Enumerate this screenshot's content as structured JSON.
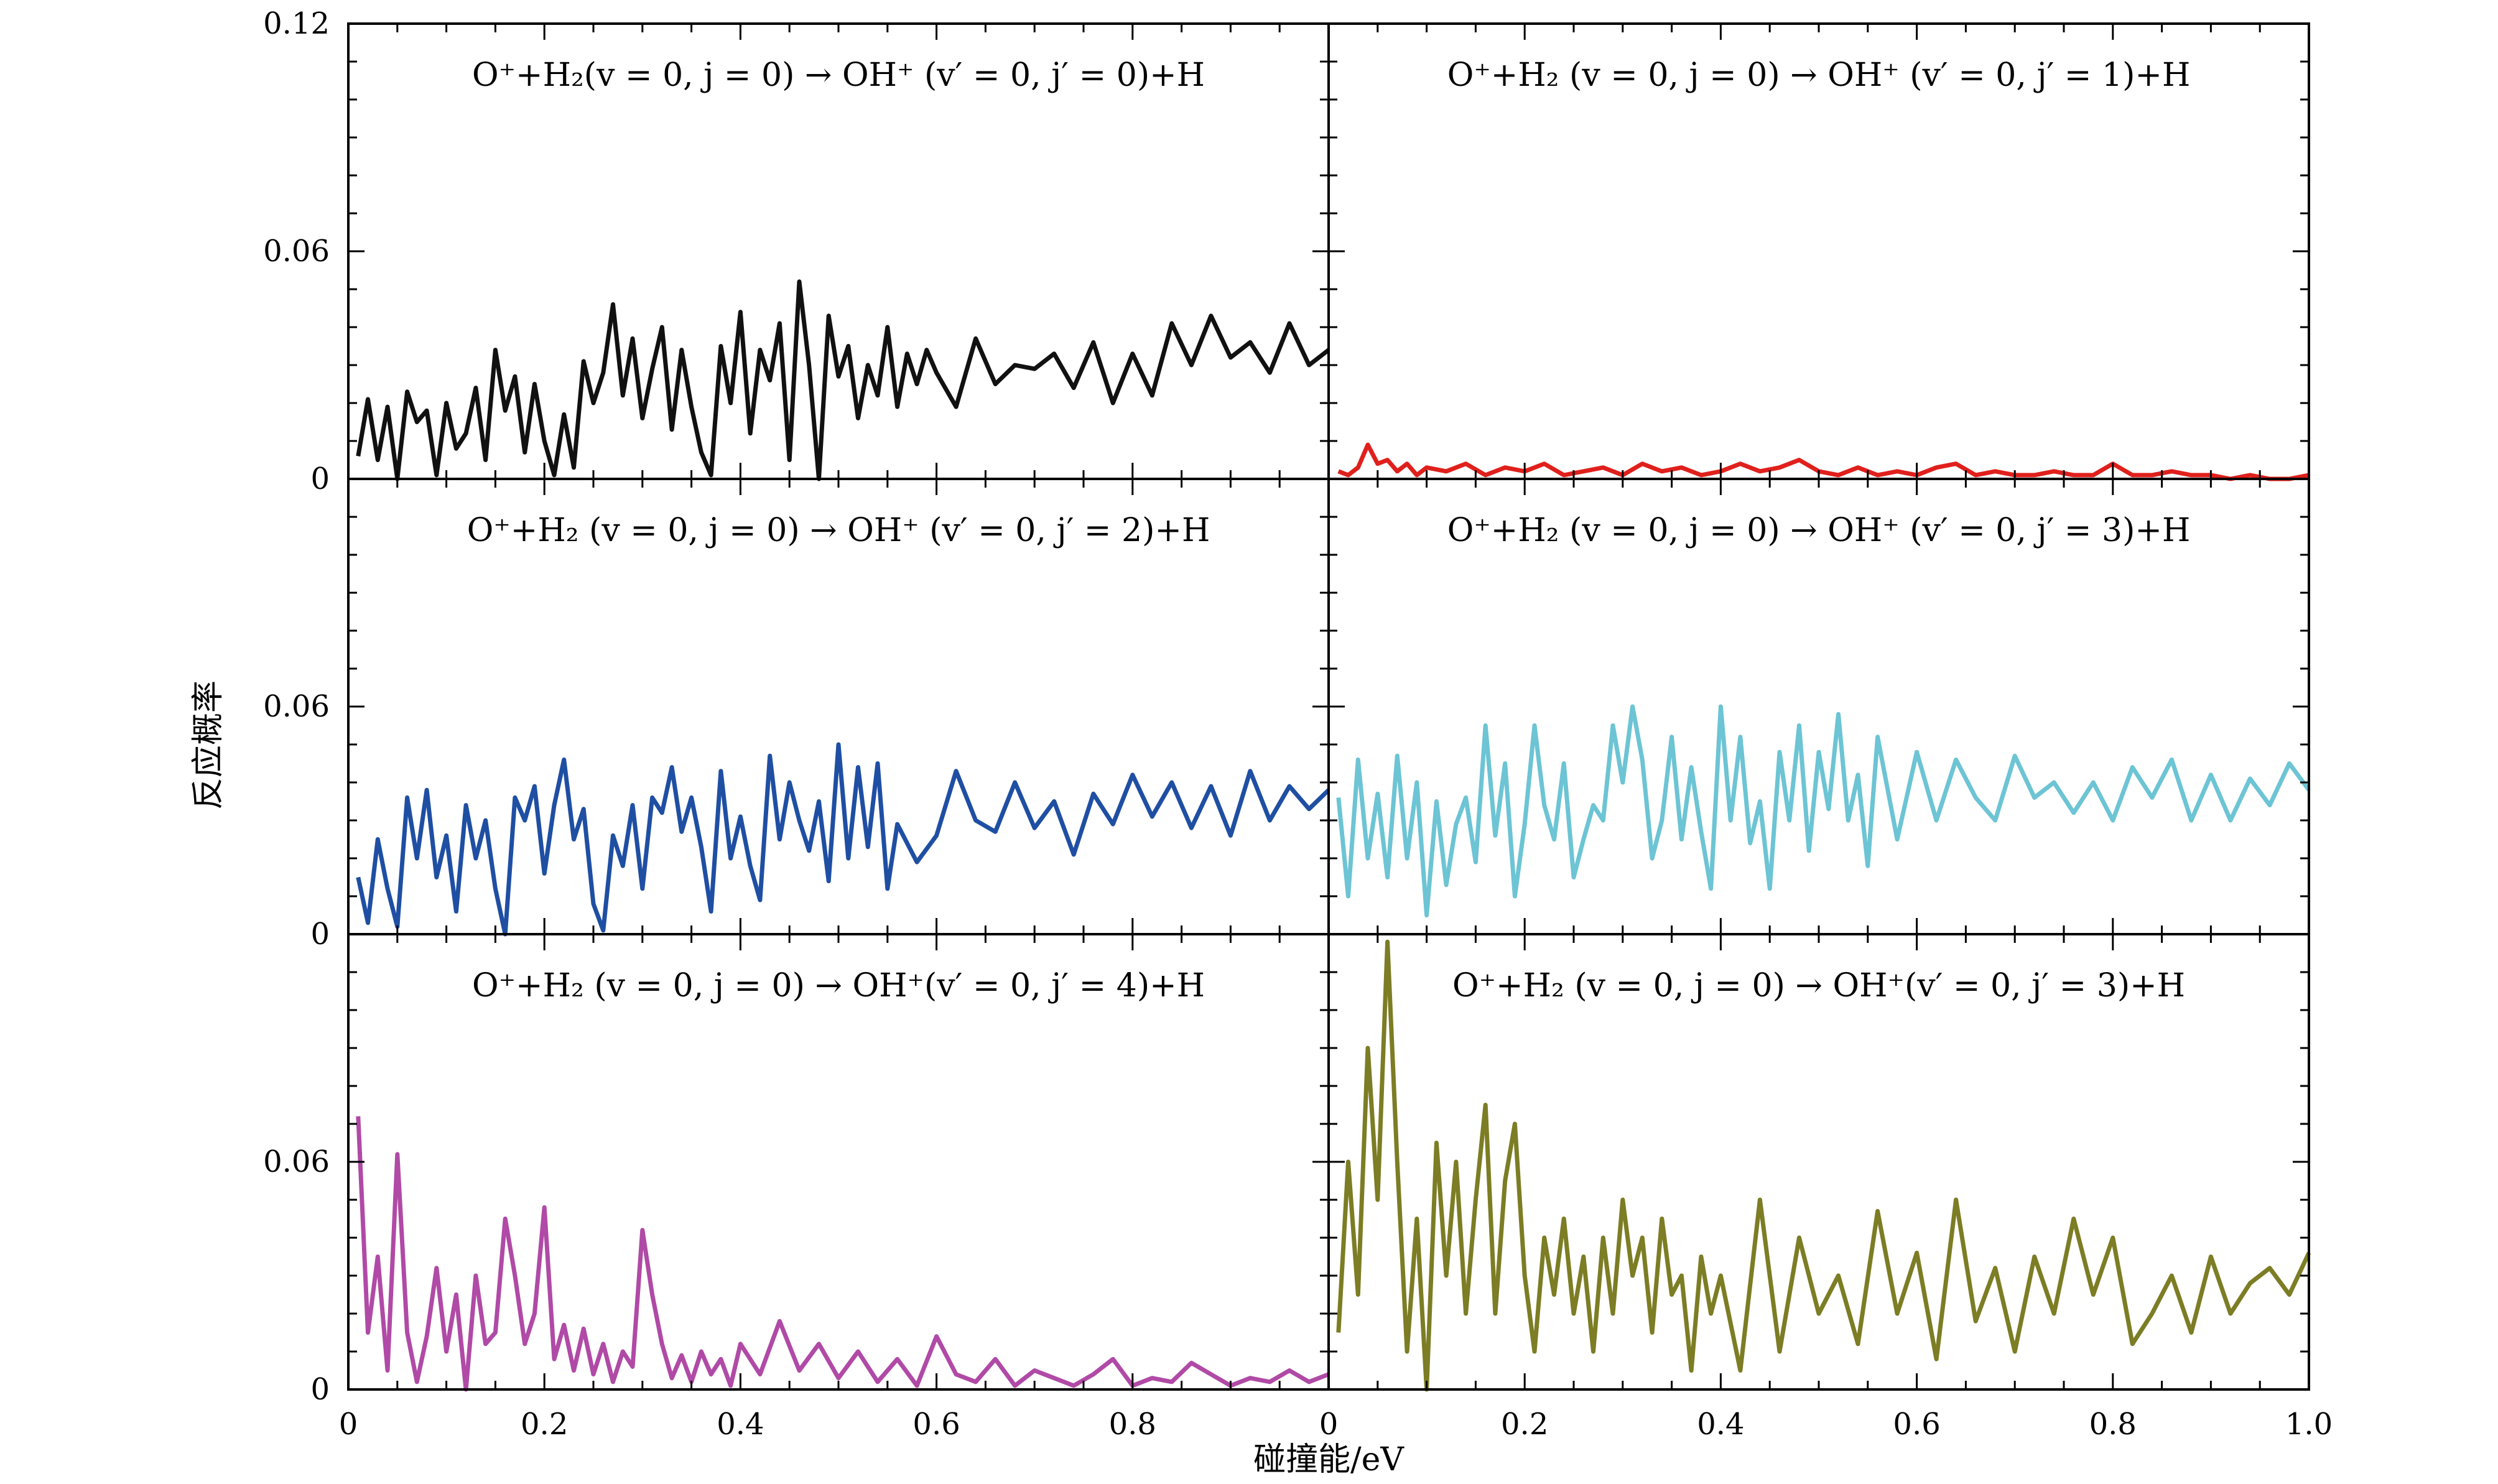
{
  "chart_data": {
    "type": "line",
    "layout": "3x2 panel grid, shared axes",
    "ylabel": "反应概率",
    "xlabel": "碰撞能/eV",
    "ylim": [
      0,
      0.12
    ],
    "xlim": [
      0,
      1.0
    ],
    "y_ticks": [
      "0",
      "0.06",
      "0.12"
    ],
    "y_tick_values": [
      0,
      0.06,
      0.12
    ],
    "x_ticks_left": [
      "0",
      "0.2",
      "0.4",
      "0.6",
      "0.8"
    ],
    "x_tick_left_values": [
      0,
      0.2,
      0.4,
      0.6,
      0.8
    ],
    "x_ticks_right": [
      "0",
      "0.2",
      "0.4",
      "0.6",
      "0.8",
      "1.0"
    ],
    "x_tick_right_values": [
      0,
      0.2,
      0.4,
      0.6,
      0.8,
      1.0
    ],
    "panels": [
      {
        "label": "O⁺+H₂(v = 0, j = 0) → OH⁺ (v′ = 0, j′ = 0)+H",
        "color": "#111111",
        "series": {
          "x": [
            0.01,
            0.02,
            0.03,
            0.04,
            0.05,
            0.06,
            0.07,
            0.08,
            0.09,
            0.1,
            0.11,
            0.12,
            0.13,
            0.14,
            0.15,
            0.16,
            0.17,
            0.18,
            0.19,
            0.2,
            0.21,
            0.22,
            0.23,
            0.24,
            0.25,
            0.26,
            0.27,
            0.28,
            0.29,
            0.3,
            0.31,
            0.32,
            0.33,
            0.34,
            0.35,
            0.36,
            0.37,
            0.38,
            0.39,
            0.4,
            0.41,
            0.42,
            0.43,
            0.44,
            0.45,
            0.46,
            0.47,
            0.48,
            0.49,
            0.5,
            0.51,
            0.52,
            0.53,
            0.54,
            0.55,
            0.56,
            0.57,
            0.58,
            0.59,
            0.6,
            0.62,
            0.64,
            0.66,
            0.68,
            0.7,
            0.72,
            0.74,
            0.76,
            0.78,
            0.8,
            0.82,
            0.84,
            0.86,
            0.88,
            0.9,
            0.92,
            0.94,
            0.96,
            0.98,
            1.0
          ],
          "y": [
            0.006,
            0.021,
            0.005,
            0.019,
            0.0,
            0.023,
            0.015,
            0.018,
            0.001,
            0.02,
            0.008,
            0.012,
            0.024,
            0.005,
            0.034,
            0.018,
            0.027,
            0.007,
            0.025,
            0.01,
            0.001,
            0.017,
            0.003,
            0.031,
            0.02,
            0.028,
            0.046,
            0.022,
            0.037,
            0.016,
            0.029,
            0.04,
            0.013,
            0.034,
            0.019,
            0.007,
            0.001,
            0.035,
            0.02,
            0.044,
            0.012,
            0.034,
            0.026,
            0.041,
            0.005,
            0.052,
            0.03,
            0.0,
            0.043,
            0.027,
            0.035,
            0.016,
            0.03,
            0.022,
            0.04,
            0.019,
            0.033,
            0.025,
            0.034,
            0.028,
            0.019,
            0.037,
            0.025,
            0.03,
            0.029,
            0.033,
            0.024,
            0.036,
            0.02,
            0.033,
            0.022,
            0.041,
            0.03,
            0.043,
            0.032,
            0.036,
            0.028,
            0.041,
            0.03,
            0.034
          ]
        }
      },
      {
        "label": "O⁺+H₂ (v = 0, j = 0) → OH⁺ (v′ = 0, j′ = 1)+H",
        "color": "#e0201c",
        "series": {
          "x": [
            0.01,
            0.02,
            0.03,
            0.04,
            0.05,
            0.06,
            0.07,
            0.08,
            0.09,
            0.1,
            0.12,
            0.14,
            0.16,
            0.18,
            0.2,
            0.22,
            0.24,
            0.26,
            0.28,
            0.3,
            0.32,
            0.34,
            0.36,
            0.38,
            0.4,
            0.42,
            0.44,
            0.46,
            0.48,
            0.5,
            0.52,
            0.54,
            0.56,
            0.58,
            0.6,
            0.62,
            0.64,
            0.66,
            0.68,
            0.7,
            0.72,
            0.74,
            0.76,
            0.78,
            0.8,
            0.82,
            0.84,
            0.86,
            0.88,
            0.9,
            0.92,
            0.94,
            0.96,
            0.98,
            1.0
          ],
          "y": [
            0.002,
            0.001,
            0.003,
            0.009,
            0.004,
            0.005,
            0.002,
            0.004,
            0.001,
            0.003,
            0.002,
            0.004,
            0.001,
            0.003,
            0.002,
            0.004,
            0.001,
            0.002,
            0.003,
            0.001,
            0.004,
            0.002,
            0.003,
            0.001,
            0.002,
            0.004,
            0.002,
            0.003,
            0.005,
            0.002,
            0.001,
            0.003,
            0.001,
            0.002,
            0.001,
            0.003,
            0.004,
            0.001,
            0.002,
            0.001,
            0.001,
            0.002,
            0.001,
            0.001,
            0.004,
            0.001,
            0.001,
            0.002,
            0.001,
            0.001,
            0.0,
            0.001,
            0.0,
            0.0,
            0.001
          ]
        }
      },
      {
        "label": "O⁺+H₂ (v = 0, j = 0) → OH⁺ (v′ = 0, j′ = 2)+H",
        "color": "#1f4fa3",
        "series": {
          "x": [
            0.01,
            0.02,
            0.03,
            0.04,
            0.05,
            0.06,
            0.07,
            0.08,
            0.09,
            0.1,
            0.11,
            0.12,
            0.13,
            0.14,
            0.15,
            0.16,
            0.17,
            0.18,
            0.19,
            0.2,
            0.21,
            0.22,
            0.23,
            0.24,
            0.25,
            0.26,
            0.27,
            0.28,
            0.29,
            0.3,
            0.31,
            0.32,
            0.33,
            0.34,
            0.35,
            0.36,
            0.37,
            0.38,
            0.39,
            0.4,
            0.41,
            0.42,
            0.43,
            0.44,
            0.45,
            0.46,
            0.47,
            0.48,
            0.49,
            0.5,
            0.51,
            0.52,
            0.53,
            0.54,
            0.55,
            0.56,
            0.58,
            0.6,
            0.62,
            0.64,
            0.66,
            0.68,
            0.7,
            0.72,
            0.74,
            0.76,
            0.78,
            0.8,
            0.82,
            0.84,
            0.86,
            0.88,
            0.9,
            0.92,
            0.94,
            0.96,
            0.98,
            1.0
          ],
          "y": [
            0.015,
            0.003,
            0.025,
            0.012,
            0.002,
            0.036,
            0.02,
            0.038,
            0.015,
            0.026,
            0.006,
            0.034,
            0.02,
            0.03,
            0.012,
            0.0,
            0.036,
            0.03,
            0.039,
            0.016,
            0.034,
            0.046,
            0.025,
            0.033,
            0.008,
            0.001,
            0.026,
            0.018,
            0.034,
            0.012,
            0.036,
            0.032,
            0.044,
            0.027,
            0.036,
            0.023,
            0.006,
            0.043,
            0.02,
            0.031,
            0.018,
            0.009,
            0.047,
            0.025,
            0.04,
            0.03,
            0.022,
            0.035,
            0.014,
            0.05,
            0.02,
            0.044,
            0.023,
            0.045,
            0.012,
            0.029,
            0.019,
            0.026,
            0.043,
            0.03,
            0.027,
            0.04,
            0.028,
            0.035,
            0.021,
            0.037,
            0.029,
            0.042,
            0.031,
            0.04,
            0.028,
            0.039,
            0.026,
            0.043,
            0.03,
            0.039,
            0.033,
            0.038
          ]
        }
      },
      {
        "label": "O⁺+H₂ (v = 0, j = 0) → OH⁺ (v′ = 0, j′ = 3)+H",
        "color": "#6cc4d4",
        "series": {
          "x": [
            0.01,
            0.02,
            0.03,
            0.04,
            0.05,
            0.06,
            0.07,
            0.08,
            0.09,
            0.1,
            0.11,
            0.12,
            0.13,
            0.14,
            0.15,
            0.16,
            0.17,
            0.18,
            0.19,
            0.2,
            0.21,
            0.22,
            0.23,
            0.24,
            0.25,
            0.26,
            0.27,
            0.28,
            0.29,
            0.3,
            0.31,
            0.32,
            0.33,
            0.34,
            0.35,
            0.36,
            0.37,
            0.38,
            0.39,
            0.4,
            0.41,
            0.42,
            0.43,
            0.44,
            0.45,
            0.46,
            0.47,
            0.48,
            0.49,
            0.5,
            0.51,
            0.52,
            0.53,
            0.54,
            0.55,
            0.56,
            0.58,
            0.6,
            0.62,
            0.64,
            0.66,
            0.68,
            0.7,
            0.72,
            0.74,
            0.76,
            0.78,
            0.8,
            0.82,
            0.84,
            0.86,
            0.88,
            0.9,
            0.92,
            0.94,
            0.96,
            0.98,
            1.0
          ],
          "y": [
            0.036,
            0.01,
            0.046,
            0.02,
            0.037,
            0.015,
            0.047,
            0.02,
            0.04,
            0.005,
            0.035,
            0.013,
            0.029,
            0.036,
            0.019,
            0.055,
            0.026,
            0.045,
            0.01,
            0.029,
            0.055,
            0.034,
            0.025,
            0.045,
            0.015,
            0.025,
            0.034,
            0.03,
            0.055,
            0.04,
            0.06,
            0.046,
            0.02,
            0.03,
            0.052,
            0.025,
            0.044,
            0.027,
            0.012,
            0.06,
            0.03,
            0.052,
            0.024,
            0.035,
            0.012,
            0.048,
            0.03,
            0.055,
            0.022,
            0.048,
            0.033,
            0.058,
            0.03,
            0.042,
            0.018,
            0.052,
            0.025,
            0.048,
            0.03,
            0.046,
            0.036,
            0.03,
            0.047,
            0.036,
            0.04,
            0.032,
            0.04,
            0.03,
            0.044,
            0.036,
            0.046,
            0.03,
            0.042,
            0.03,
            0.041,
            0.034,
            0.045,
            0.038
          ]
        }
      },
      {
        "label": "O⁺+H₂ (v = 0, j = 0) → OH⁺(v′ = 0, j′ = 4)+H",
        "color": "#b04aa6",
        "series": {
          "x": [
            0.01,
            0.02,
            0.03,
            0.04,
            0.05,
            0.06,
            0.07,
            0.08,
            0.09,
            0.1,
            0.11,
            0.12,
            0.13,
            0.14,
            0.15,
            0.16,
            0.17,
            0.18,
            0.19,
            0.2,
            0.21,
            0.22,
            0.23,
            0.24,
            0.25,
            0.26,
            0.27,
            0.28,
            0.29,
            0.3,
            0.31,
            0.32,
            0.33,
            0.34,
            0.35,
            0.36,
            0.37,
            0.38,
            0.39,
            0.4,
            0.42,
            0.44,
            0.46,
            0.48,
            0.5,
            0.52,
            0.54,
            0.56,
            0.58,
            0.6,
            0.62,
            0.64,
            0.66,
            0.68,
            0.7,
            0.72,
            0.74,
            0.76,
            0.78,
            0.8,
            0.82,
            0.84,
            0.86,
            0.88,
            0.9,
            0.92,
            0.94,
            0.96,
            0.98,
            1.0
          ],
          "y": [
            0.072,
            0.015,
            0.035,
            0.005,
            0.062,
            0.015,
            0.002,
            0.014,
            0.032,
            0.01,
            0.025,
            0.0,
            0.03,
            0.012,
            0.015,
            0.045,
            0.03,
            0.012,
            0.02,
            0.048,
            0.008,
            0.017,
            0.005,
            0.016,
            0.004,
            0.012,
            0.002,
            0.01,
            0.006,
            0.042,
            0.025,
            0.012,
            0.003,
            0.009,
            0.002,
            0.01,
            0.004,
            0.008,
            0.001,
            0.012,
            0.004,
            0.018,
            0.005,
            0.012,
            0.003,
            0.01,
            0.002,
            0.008,
            0.001,
            0.014,
            0.004,
            0.002,
            0.008,
            0.001,
            0.005,
            0.003,
            0.001,
            0.004,
            0.008,
            0.001,
            0.003,
            0.002,
            0.007,
            0.004,
            0.001,
            0.003,
            0.002,
            0.005,
            0.002,
            0.004
          ]
        }
      },
      {
        "label": "O⁺+H₂ (v = 0, j = 0) → OH⁺(v′ = 0, j′ = 3)+H",
        "color": "#7c7d24",
        "series": {
          "x": [
            0.01,
            0.02,
            0.03,
            0.04,
            0.05,
            0.06,
            0.07,
            0.08,
            0.09,
            0.1,
            0.11,
            0.12,
            0.13,
            0.14,
            0.15,
            0.16,
            0.17,
            0.18,
            0.19,
            0.2,
            0.21,
            0.22,
            0.23,
            0.24,
            0.25,
            0.26,
            0.27,
            0.28,
            0.29,
            0.3,
            0.31,
            0.32,
            0.33,
            0.34,
            0.35,
            0.36,
            0.37,
            0.38,
            0.39,
            0.4,
            0.42,
            0.44,
            0.46,
            0.48,
            0.5,
            0.52,
            0.54,
            0.56,
            0.58,
            0.6,
            0.62,
            0.64,
            0.66,
            0.68,
            0.7,
            0.72,
            0.74,
            0.76,
            0.78,
            0.8,
            0.82,
            0.84,
            0.86,
            0.88,
            0.9,
            0.92,
            0.94,
            0.96,
            0.98,
            1.0
          ],
          "y": [
            0.015,
            0.06,
            0.025,
            0.09,
            0.05,
            0.118,
            0.06,
            0.01,
            0.045,
            0.0,
            0.065,
            0.03,
            0.06,
            0.02,
            0.05,
            0.075,
            0.02,
            0.055,
            0.07,
            0.03,
            0.01,
            0.04,
            0.025,
            0.045,
            0.02,
            0.035,
            0.01,
            0.04,
            0.02,
            0.05,
            0.03,
            0.04,
            0.015,
            0.045,
            0.025,
            0.03,
            0.005,
            0.035,
            0.02,
            0.03,
            0.005,
            0.05,
            0.01,
            0.04,
            0.02,
            0.03,
            0.012,
            0.047,
            0.02,
            0.036,
            0.008,
            0.05,
            0.018,
            0.032,
            0.01,
            0.035,
            0.02,
            0.045,
            0.025,
            0.04,
            0.012,
            0.02,
            0.03,
            0.015,
            0.035,
            0.02,
            0.028,
            0.032,
            0.025,
            0.036
          ]
        }
      }
    ]
  }
}
